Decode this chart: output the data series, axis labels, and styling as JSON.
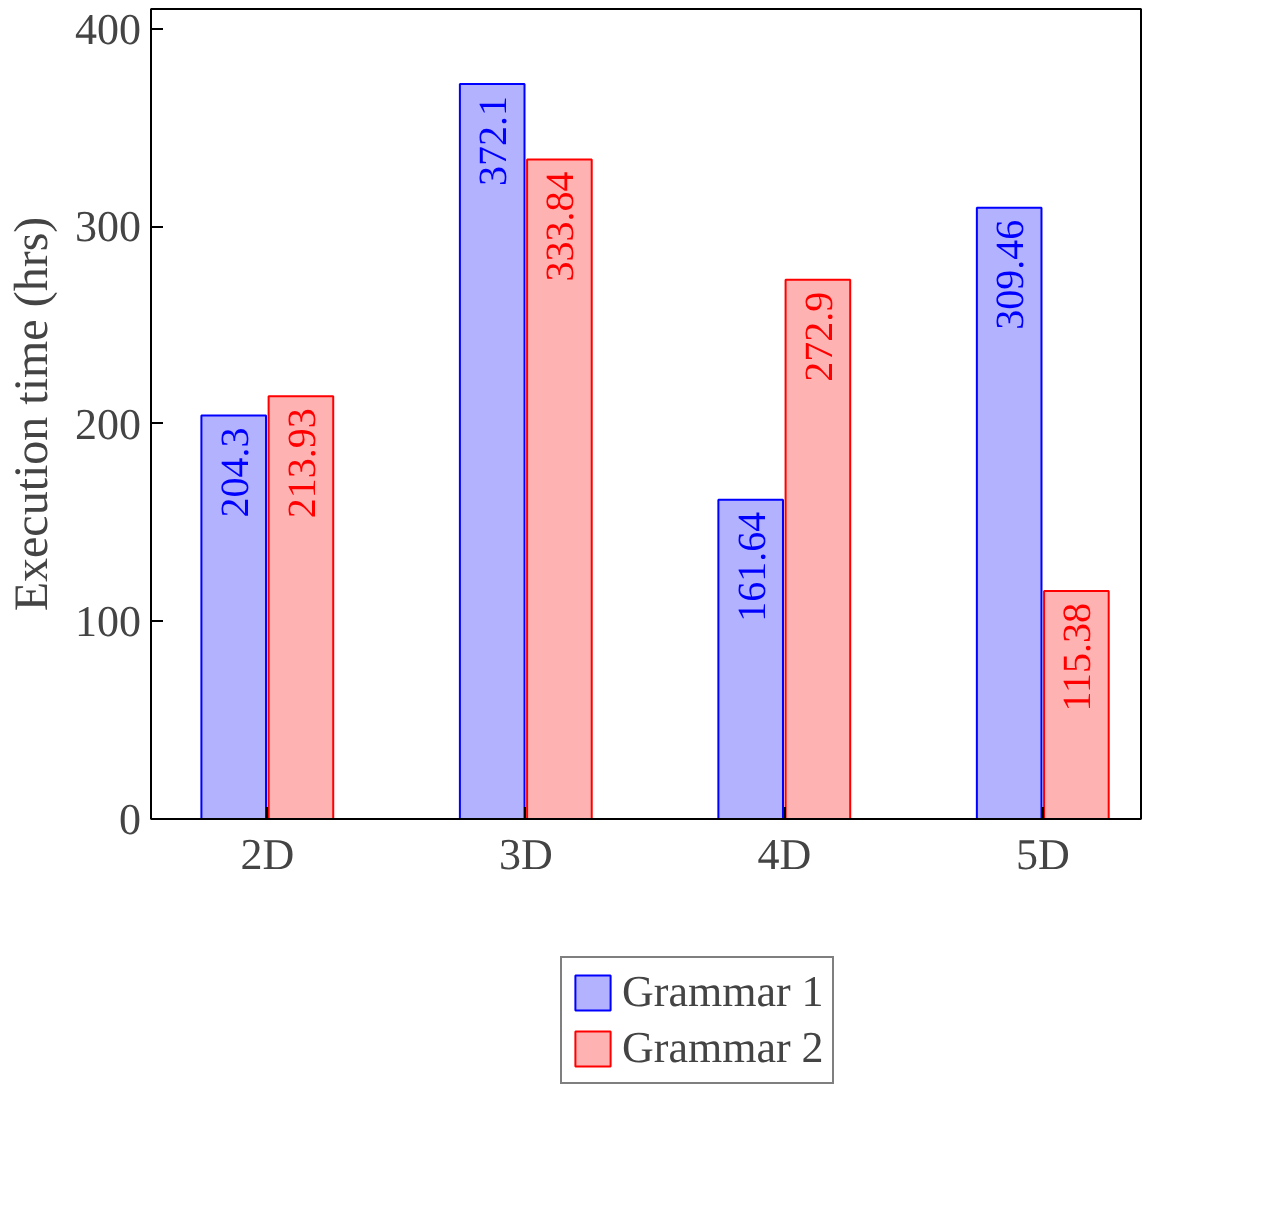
{
  "chart_data": {
    "type": "bar",
    "ylabel": "Execution time (hrs)",
    "categories": [
      "2D",
      "3D",
      "4D",
      "5D"
    ],
    "series": [
      {
        "name": "Grammar 1",
        "color": "#0000ff",
        "values": [
          204.3,
          372.1,
          161.64,
          309.46
        ]
      },
      {
        "name": "Grammar 2",
        "color": "#ff0000",
        "values": [
          213.93,
          333.84,
          272.9,
          115.38
        ]
      }
    ],
    "ylim": [
      0,
      410
    ],
    "yticks": [
      0,
      100,
      200,
      300,
      400
    ],
    "data_labels": true,
    "grid": false,
    "legend": "bottom"
  }
}
